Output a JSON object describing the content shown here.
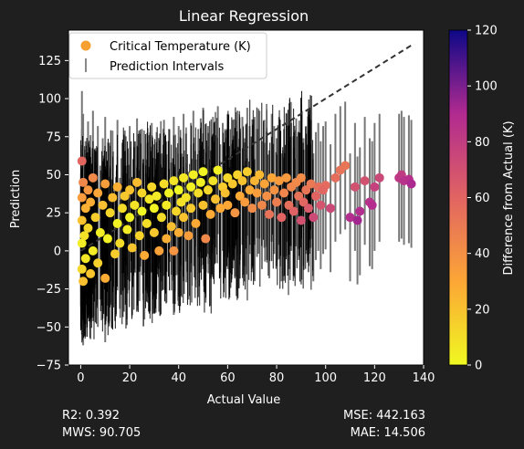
{
  "chart_data": {
    "type": "scatter",
    "title": "Linear Regression",
    "xlabel": "Actual Value",
    "ylabel": "Prediction",
    "xlim": [
      -5,
      140
    ],
    "ylim": [
      -75,
      145
    ],
    "xticks": [
      0,
      20,
      40,
      60,
      80,
      100,
      120,
      140
    ],
    "yticks": [
      -75,
      -50,
      -25,
      0,
      25,
      50,
      75,
      100,
      125
    ],
    "grid": false,
    "legend_position": "upper-left",
    "legend": [
      {
        "label": "Critical Temperature (K)",
        "marker": "circle",
        "color": "#f5a030"
      },
      {
        "label": "Prediction Intervals",
        "marker": "vertical-line",
        "color": "#888888"
      }
    ],
    "ideal_line": {
      "style": "dashed",
      "color": "#333333",
      "x": [
        0,
        135
      ],
      "y": [
        0,
        135
      ]
    },
    "colorbar": {
      "label": "Difference from Actual (K)",
      "colormap": "plasma_r",
      "range": [
        0,
        120
      ],
      "ticks": [
        0,
        20,
        40,
        60,
        80,
        100,
        120
      ]
    },
    "points": [
      {
        "x": 0.5,
        "y": -12,
        "lo": -55,
        "hi": 30
      },
      {
        "x": 0.5,
        "y": 5,
        "lo": -40,
        "hi": 50
      },
      {
        "x": 0.5,
        "y": 20,
        "lo": -25,
        "hi": 65
      },
      {
        "x": 0.5,
        "y": 35,
        "lo": -10,
        "hi": 80
      },
      {
        "x": 0.5,
        "y": 59,
        "lo": 15,
        "hi": 105
      },
      {
        "x": 1,
        "y": 45,
        "lo": 0,
        "hi": 90
      },
      {
        "x": 1,
        "y": -20,
        "lo": -62,
        "hi": 22
      },
      {
        "x": 1.5,
        "y": 10,
        "lo": -35,
        "hi": 55
      },
      {
        "x": 2,
        "y": 28,
        "lo": -18,
        "hi": 72
      },
      {
        "x": 2,
        "y": -5,
        "lo": -48,
        "hi": 40
      },
      {
        "x": 3,
        "y": 40,
        "lo": -5,
        "hi": 85
      },
      {
        "x": 3,
        "y": 15,
        "lo": -30,
        "hi": 60
      },
      {
        "x": 4,
        "y": -15,
        "lo": -58,
        "hi": 28
      },
      {
        "x": 4,
        "y": 32,
        "lo": -12,
        "hi": 76
      },
      {
        "x": 5,
        "y": 0,
        "lo": -44,
        "hi": 46
      },
      {
        "x": 5,
        "y": 48,
        "lo": 5,
        "hi": 92
      },
      {
        "x": 6,
        "y": 22,
        "lo": -22,
        "hi": 66
      },
      {
        "x": 7,
        "y": -8,
        "lo": -50,
        "hi": 36
      },
      {
        "x": 7,
        "y": 38,
        "lo": -6,
        "hi": 82
      },
      {
        "x": 8,
        "y": 12,
        "lo": -32,
        "hi": 56
      },
      {
        "x": 9,
        "y": 30,
        "lo": -14,
        "hi": 74
      },
      {
        "x": 10,
        "y": -18,
        "lo": -60,
        "hi": 25
      },
      {
        "x": 10,
        "y": 44,
        "lo": 0,
        "hi": 88
      },
      {
        "x": 11,
        "y": 8,
        "lo": -36,
        "hi": 52
      },
      {
        "x": 12,
        "y": 25,
        "lo": -19,
        "hi": 69
      },
      {
        "x": 13,
        "y": 35,
        "lo": -9,
        "hi": 79
      },
      {
        "x": 14,
        "y": -2,
        "lo": -46,
        "hi": 42
      },
      {
        "x": 15,
        "y": 18,
        "lo": -26,
        "hi": 62
      },
      {
        "x": 15,
        "y": 42,
        "lo": -2,
        "hi": 86
      },
      {
        "x": 16,
        "y": 5,
        "lo": -38,
        "hi": 48
      },
      {
        "x": 17,
        "y": 28,
        "lo": -15,
        "hi": 71
      },
      {
        "x": 18,
        "y": 36,
        "lo": -7,
        "hi": 79
      },
      {
        "x": 19,
        "y": 14,
        "lo": -28,
        "hi": 56
      },
      {
        "x": 20,
        "y": 22,
        "lo": -20,
        "hi": 64
      },
      {
        "x": 20,
        "y": 40,
        "lo": -2,
        "hi": 82
      },
      {
        "x": 21,
        "y": 2,
        "lo": -42,
        "hi": 46
      },
      {
        "x": 22,
        "y": 30,
        "lo": -12,
        "hi": 72
      },
      {
        "x": 23,
        "y": 45,
        "lo": 3,
        "hi": 87
      },
      {
        "x": 24,
        "y": 10,
        "lo": -33,
        "hi": 53
      },
      {
        "x": 25,
        "y": 26,
        "lo": -16,
        "hi": 68
      },
      {
        "x": 25,
        "y": 38,
        "lo": -4,
        "hi": 80
      },
      {
        "x": 26,
        "y": -3,
        "lo": -45,
        "hi": 40
      },
      {
        "x": 27,
        "y": 18,
        "lo": -24,
        "hi": 60
      },
      {
        "x": 28,
        "y": 34,
        "lo": -8,
        "hi": 76
      },
      {
        "x": 29,
        "y": 42,
        "lo": 0,
        "hi": 84
      },
      {
        "x": 30,
        "y": 12,
        "lo": -30,
        "hi": 54
      },
      {
        "x": 30,
        "y": 28,
        "lo": -14,
        "hi": 70
      },
      {
        "x": 31,
        "y": 36,
        "lo": -6,
        "hi": 78
      },
      {
        "x": 32,
        "y": 0,
        "lo": -40,
        "hi": 42
      },
      {
        "x": 33,
        "y": 22,
        "lo": -20,
        "hi": 64
      },
      {
        "x": 34,
        "y": 44,
        "lo": 2,
        "hi": 86
      },
      {
        "x": 35,
        "y": 30,
        "lo": -12,
        "hi": 72
      },
      {
        "x": 35,
        "y": 8,
        "lo": -34,
        "hi": 50
      },
      {
        "x": 36,
        "y": 38,
        "lo": -4,
        "hi": 80
      },
      {
        "x": 37,
        "y": 16,
        "lo": -26,
        "hi": 58
      },
      {
        "x": 38,
        "y": 46,
        "lo": 4,
        "hi": 88
      },
      {
        "x": 38,
        "y": 0,
        "lo": -42,
        "hi": 42
      },
      {
        "x": 39,
        "y": 26,
        "lo": -16,
        "hi": 68
      },
      {
        "x": 40,
        "y": 40,
        "lo": -2,
        "hi": 82
      },
      {
        "x": 40,
        "y": 12,
        "lo": -30,
        "hi": 54
      },
      {
        "x": 41,
        "y": 32,
        "lo": -10,
        "hi": 74
      },
      {
        "x": 42,
        "y": 48,
        "lo": 6,
        "hi": 90
      },
      {
        "x": 42,
        "y": 22,
        "lo": -20,
        "hi": 64
      },
      {
        "x": 43,
        "y": 35,
        "lo": -7,
        "hi": 77
      },
      {
        "x": 44,
        "y": 10,
        "lo": -32,
        "hi": 52
      },
      {
        "x": 45,
        "y": 42,
        "lo": 0,
        "hi": 84
      },
      {
        "x": 45,
        "y": 28,
        "lo": -14,
        "hi": 70
      },
      {
        "x": 46,
        "y": 50,
        "lo": 8,
        "hi": 92
      },
      {
        "x": 47,
        "y": 18,
        "lo": -24,
        "hi": 60
      },
      {
        "x": 48,
        "y": 38,
        "lo": -4,
        "hi": 80
      },
      {
        "x": 49,
        "y": 45,
        "lo": 3,
        "hi": 87
      },
      {
        "x": 50,
        "y": 30,
        "lo": -12,
        "hi": 72
      },
      {
        "x": 50,
        "y": 52,
        "lo": 10,
        "hi": 94
      },
      {
        "x": 51,
        "y": 8,
        "lo": -34,
        "hi": 50
      },
      {
        "x": 52,
        "y": 40,
        "lo": -2,
        "hi": 82
      },
      {
        "x": 53,
        "y": 24,
        "lo": -18,
        "hi": 66
      },
      {
        "x": 54,
        "y": 46,
        "lo": 4,
        "hi": 88
      },
      {
        "x": 55,
        "y": 34,
        "lo": -8,
        "hi": 76
      },
      {
        "x": 56,
        "y": 53,
        "lo": 11,
        "hi": 95
      },
      {
        "x": 57,
        "y": 28,
        "lo": -14,
        "hi": 70
      },
      {
        "x": 58,
        "y": 42,
        "lo": 0,
        "hi": 84
      },
      {
        "x": 59,
        "y": 38,
        "lo": -4,
        "hi": 80
      },
      {
        "x": 60,
        "y": 48,
        "lo": 6,
        "hi": 90
      },
      {
        "x": 60,
        "y": 30,
        "lo": -12,
        "hi": 72
      },
      {
        "x": 62,
        "y": 44,
        "lo": 2,
        "hi": 86
      },
      {
        "x": 63,
        "y": 25,
        "lo": -17,
        "hi": 67
      },
      {
        "x": 64,
        "y": 50,
        "lo": 8,
        "hi": 92
      },
      {
        "x": 65,
        "y": 36,
        "lo": -6,
        "hi": 78
      },
      {
        "x": 66,
        "y": 46,
        "lo": 4,
        "hi": 88
      },
      {
        "x": 67,
        "y": 32,
        "lo": -10,
        "hi": 74
      },
      {
        "x": 68,
        "y": 52,
        "lo": 10,
        "hi": 94
      },
      {
        "x": 69,
        "y": 40,
        "lo": -2,
        "hi": 82
      },
      {
        "x": 70,
        "y": 28,
        "lo": -14,
        "hi": 70
      },
      {
        "x": 71,
        "y": 46,
        "lo": 4,
        "hi": 88
      },
      {
        "x": 72,
        "y": 38,
        "lo": -4,
        "hi": 80
      },
      {
        "x": 73,
        "y": 50,
        "lo": 8,
        "hi": 92
      },
      {
        "x": 74,
        "y": 30,
        "lo": -12,
        "hi": 72
      },
      {
        "x": 75,
        "y": 44,
        "lo": 2,
        "hi": 86
      },
      {
        "x": 76,
        "y": 36,
        "lo": -6,
        "hi": 78
      },
      {
        "x": 77,
        "y": 24,
        "lo": -18,
        "hi": 66
      },
      {
        "x": 78,
        "y": 48,
        "lo": 6,
        "hi": 90
      },
      {
        "x": 79,
        "y": 40,
        "lo": -2,
        "hi": 82
      },
      {
        "x": 80,
        "y": 32,
        "lo": -10,
        "hi": 74
      },
      {
        "x": 81,
        "y": 46,
        "lo": 4,
        "hi": 88
      },
      {
        "x": 82,
        "y": 22,
        "lo": -20,
        "hi": 64
      },
      {
        "x": 83,
        "y": 38,
        "lo": -4,
        "hi": 80
      },
      {
        "x": 84,
        "y": 48,
        "lo": 6,
        "hi": 90
      },
      {
        "x": 85,
        "y": 30,
        "lo": -12,
        "hi": 72
      },
      {
        "x": 86,
        "y": 42,
        "lo": 0,
        "hi": 84
      },
      {
        "x": 87,
        "y": 26,
        "lo": -16,
        "hi": 68
      },
      {
        "x": 88,
        "y": 45,
        "lo": 3,
        "hi": 87
      },
      {
        "x": 89,
        "y": 36,
        "lo": -6,
        "hi": 78
      },
      {
        "x": 90,
        "y": 20,
        "lo": -22,
        "hi": 62
      },
      {
        "x": 90,
        "y": 48,
        "lo": 6,
        "hi": 90
      },
      {
        "x": 91,
        "y": 32,
        "lo": -10,
        "hi": 74
      },
      {
        "x": 92,
        "y": 40,
        "lo": -2,
        "hi": 82
      },
      {
        "x": 93,
        "y": 28,
        "lo": -14,
        "hi": 70
      },
      {
        "x": 94,
        "y": 44,
        "lo": 2,
        "hi": 86
      },
      {
        "x": 95,
        "y": 22,
        "lo": -20,
        "hi": 64
      },
      {
        "x": 96,
        "y": 36,
        "lo": -6,
        "hi": 78
      },
      {
        "x": 97,
        "y": 42,
        "lo": 0,
        "hi": 84
      },
      {
        "x": 98,
        "y": 30,
        "lo": -12,
        "hi": 72
      },
      {
        "x": 99,
        "y": 40,
        "lo": -2,
        "hi": 82
      },
      {
        "x": 100,
        "y": 43,
        "lo": 1,
        "hi": 85
      },
      {
        "x": 102,
        "y": 28,
        "lo": -14,
        "hi": 70
      },
      {
        "x": 104,
        "y": 48,
        "lo": 6,
        "hi": 90
      },
      {
        "x": 106,
        "y": 53,
        "lo": 11,
        "hi": 95
      },
      {
        "x": 108,
        "y": 56,
        "lo": 14,
        "hi": 98
      },
      {
        "x": 110,
        "y": 22,
        "lo": -20,
        "hi": 64
      },
      {
        "x": 112,
        "y": 42,
        "lo": 0,
        "hi": 84
      },
      {
        "x": 113,
        "y": 20,
        "lo": -22,
        "hi": 62
      },
      {
        "x": 114,
        "y": 26,
        "lo": -16,
        "hi": 68
      },
      {
        "x": 116,
        "y": 46,
        "lo": 4,
        "hi": 88
      },
      {
        "x": 118,
        "y": 32,
        "lo": -10,
        "hi": 74
      },
      {
        "x": 119,
        "y": 30,
        "lo": -12,
        "hi": 72
      },
      {
        "x": 120,
        "y": 42,
        "lo": 0,
        "hi": 84
      },
      {
        "x": 122,
        "y": 48,
        "lo": 6,
        "hi": 90
      },
      {
        "x": 130,
        "y": 48,
        "lo": 6,
        "hi": 90
      },
      {
        "x": 131,
        "y": 50,
        "lo": 8,
        "hi": 92
      },
      {
        "x": 132,
        "y": 46,
        "lo": 4,
        "hi": 88
      },
      {
        "x": 134,
        "y": 47,
        "lo": 5,
        "hi": 89
      },
      {
        "x": 135,
        "y": 44,
        "lo": 2,
        "hi": 86
      }
    ]
  },
  "metrics": {
    "r2": "R2: 0.392",
    "mws": "MWS: 90.705",
    "mse": "MSE: 442.163",
    "mae": "MAE: 14.506"
  }
}
